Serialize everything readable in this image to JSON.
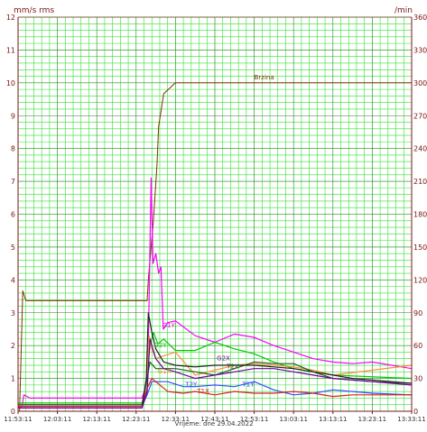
{
  "chart_data": {
    "type": "line",
    "title": "",
    "xlabel": "Vrijeme: dne 29.04.2022",
    "ylabel_left": "mm/s rms",
    "ylabel_right": "/min",
    "x_ticks": [
      "11:53:11",
      "12:03:11",
      "12:13:11",
      "12:23:11",
      "12:33:11",
      "12:43:11",
      "12:53:11",
      "13:03:11",
      "13:13:11",
      "13:23:11",
      "13:33:11"
    ],
    "x_range_minutes": [
      0,
      100
    ],
    "y_left_ticks": [
      "0",
      "1",
      "2",
      "3",
      "4",
      "5",
      "6",
      "7",
      "8",
      "9",
      "10",
      "11",
      "12"
    ],
    "y_left_range": [
      0,
      12
    ],
    "y_right_ticks": [
      "0",
      "30",
      "60",
      "90",
      "120",
      "150",
      "180",
      "210",
      "240",
      "270",
      "300",
      "330",
      "360"
    ],
    "y_right_range": [
      0,
      360
    ],
    "grid": true,
    "colors": {
      "axis": "#7a1414",
      "grid_minor": "#33e033",
      "grid_major": "#2a2a2a",
      "brzina": "#7b3300",
      "magenta": "#ff00ff",
      "green": "#00c800",
      "orange": "#ff8c3c",
      "blue": "#3050ff",
      "red": "#e02020",
      "black": "#202020",
      "purple": "#7000a0",
      "dark_green": "#206020"
    },
    "series": [
      {
        "name": "Brzina",
        "axis": "right",
        "color": "brzina",
        "x": [
          0,
          0.4,
          1.2,
          2,
          5,
          30,
          31.5,
          32.8,
          33.1,
          33.8,
          34.4,
          35.3,
          35.7,
          37,
          40,
          60,
          100
        ],
        "y": [
          0,
          0,
          110,
          101,
          101,
          101,
          101,
          101,
          120,
          150,
          175,
          225,
          260,
          290,
          300,
          300,
          300
        ]
      },
      {
        "name": "G1Y",
        "axis": "left",
        "color": "magenta",
        "x": [
          0,
          1,
          1.5,
          3,
          10,
          20,
          31.5,
          32.6,
          33.1,
          33.8,
          34.3,
          35,
          35.7,
          36.3,
          36.9,
          38,
          40,
          45,
          50,
          55,
          60,
          65,
          70,
          75,
          80,
          85,
          90,
          100
        ],
        "y": [
          0.1,
          0.15,
          0.5,
          0.4,
          0.4,
          0.4,
          0.4,
          0.8,
          2,
          7.1,
          4.5,
          4.8,
          4.2,
          4.4,
          2.5,
          2.7,
          2.75,
          2.3,
          2.1,
          2.35,
          2.25,
          2,
          1.8,
          1.6,
          1.5,
          1.45,
          1.5,
          1.3
        ]
      },
      {
        "name": "G2Y",
        "axis": "left",
        "color": "green",
        "x": [
          0,
          10,
          20,
          31.5,
          32.6,
          33.5,
          34.4,
          35.5,
          37,
          40,
          45,
          50,
          55,
          60,
          65,
          70,
          75,
          80,
          100
        ],
        "y": [
          0.25,
          0.25,
          0.25,
          0.25,
          0.8,
          2,
          2.4,
          2.05,
          2.2,
          1.85,
          1.85,
          2.1,
          1.9,
          1.75,
          1.5,
          1.3,
          1.2,
          1.1,
          1.0
        ]
      },
      {
        "name": "G2X",
        "axis": "left",
        "color": "orange",
        "x": [
          0,
          10,
          20,
          31.5,
          32.6,
          33.3,
          34,
          35,
          36,
          40,
          45,
          50,
          55,
          60,
          65,
          70,
          75,
          80,
          100
        ],
        "y": [
          0.2,
          0.2,
          0.2,
          0.2,
          0.8,
          2.3,
          1.9,
          1.6,
          1.65,
          1.8,
          1.1,
          1.25,
          1.4,
          1.45,
          1.4,
          1.35,
          1.25,
          1.1,
          1.4
        ]
      },
      {
        "name": "T2X",
        "axis": "left",
        "color": "dark_green",
        "x": [
          0,
          20,
          31.5,
          32.8,
          33.5,
          35,
          40,
          45,
          50,
          55,
          60,
          65,
          70,
          75,
          80,
          85,
          90,
          100
        ],
        "y": [
          0.2,
          0.2,
          0.2,
          1,
          1.5,
          1.3,
          1.3,
          1.2,
          1.1,
          1.3,
          1.5,
          1.45,
          1.45,
          1.2,
          1.0,
          0.95,
          0.9,
          0.85
        ]
      },
      {
        "name": "T2Y",
        "axis": "left",
        "color": "blue",
        "x": [
          0,
          20,
          31.5,
          32.8,
          34,
          38,
          42,
          45,
          50,
          55,
          60,
          65,
          70,
          75,
          80,
          85,
          90,
          100
        ],
        "y": [
          0.15,
          0.15,
          0.15,
          0.5,
          0.9,
          0.9,
          0.75,
          0.75,
          0.8,
          0.75,
          0.9,
          0.65,
          0.5,
          0.55,
          0.65,
          0.6,
          0.55,
          0.5
        ]
      },
      {
        "name": "T1X",
        "axis": "left",
        "color": "red",
        "x": [
          0,
          20,
          31.5,
          32.8,
          34,
          38,
          42,
          45,
          50,
          55,
          60,
          65,
          70,
          75,
          80,
          85,
          90,
          100
        ],
        "y": [
          0.15,
          0.15,
          0.15,
          0.7,
          1.0,
          0.6,
          0.55,
          0.6,
          0.5,
          0.6,
          0.55,
          0.55,
          0.6,
          0.55,
          0.45,
          0.5,
          0.5,
          0.5
        ]
      },
      {
        "name": "",
        "axis": "left",
        "color": "black",
        "x": [
          0,
          20,
          31.5,
          32.6,
          33.1,
          34,
          35,
          37,
          40,
          45,
          50,
          55,
          60,
          65,
          70,
          75,
          80,
          85,
          90,
          95,
          100
        ],
        "y": [
          0.1,
          0.1,
          0.1,
          1,
          3,
          2.4,
          1.9,
          1.5,
          1.4,
          1.35,
          1.4,
          1.4,
          1.4,
          1.35,
          1.3,
          1.2,
          1.1,
          1.0,
          0.95,
          0.9,
          0.85
        ]
      },
      {
        "name": "",
        "axis": "left",
        "color": "purple",
        "x": [
          0,
          20,
          31.5,
          32.8,
          33.5,
          35,
          37,
          40,
          45,
          50,
          55,
          60,
          65,
          70,
          75,
          80,
          85,
          90,
          100
        ],
        "y": [
          0.1,
          0.1,
          0.1,
          0.6,
          2.2,
          1.6,
          1.3,
          1.2,
          1.0,
          1.1,
          1.2,
          1.3,
          1.3,
          1.2,
          1.1,
          1.0,
          0.95,
          0.9,
          0.8
        ]
      }
    ],
    "series_labels": [
      {
        "text": "Brzina",
        "color": "brzina",
        "x": 60,
        "y": 10.1
      },
      {
        "text": "G1Y",
        "color": "magenta",
        "x": 36.6,
        "y": 2.55
      },
      {
        "text": "G2Y",
        "color": "green",
        "x": 34.5,
        "y": 1.95
      },
      {
        "text": "G2X",
        "color": "purple",
        "x": 50.5,
        "y": 1.55
      },
      {
        "text": "G1X",
        "color": "orange",
        "x": 35.5,
        "y": 1.15
      },
      {
        "text": "T2X",
        "color": "dark_green",
        "x": 53,
        "y": 1.3
      },
      {
        "text": "T2Y",
        "color": "blue",
        "x": 42.5,
        "y": 0.75
      },
      {
        "text": "T1X",
        "color": "red",
        "x": 45.5,
        "y": 0.55
      },
      {
        "text": "T1Y",
        "color": "blue",
        "x": 57,
        "y": 0.75
      }
    ]
  }
}
